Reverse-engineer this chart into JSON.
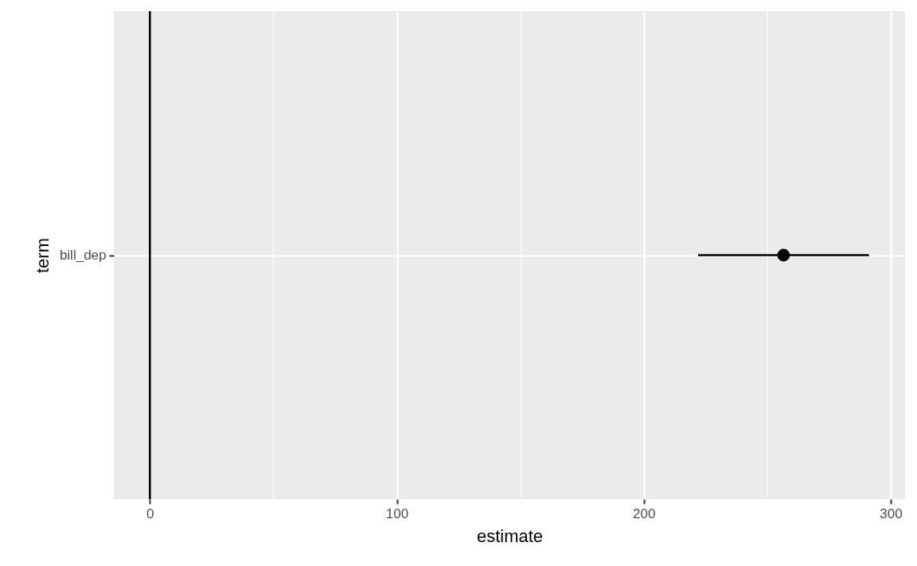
{
  "chart_data": {
    "type": "scatter",
    "orientation": "horizontal",
    "xlabel": "estimate",
    "ylabel": "term",
    "categories": [
      "bill_dep"
    ],
    "values": [
      256.6
    ],
    "errors": [
      [
        222,
        291.2
      ]
    ],
    "color": "#000000",
    "marker": "circle",
    "xlim": [
      -14.6,
      305.8
    ],
    "xticks": [
      0,
      {
        "value": 50,
        "label": null
      },
      100,
      {
        "value": 150,
        "label": null
      },
      200,
      {
        "value": 250,
        "label": null
      },
      300
    ],
    "grid": true,
    "ref_lines": [
      {
        "axis": "x",
        "value": 0,
        "color": "#000000"
      }
    ]
  }
}
